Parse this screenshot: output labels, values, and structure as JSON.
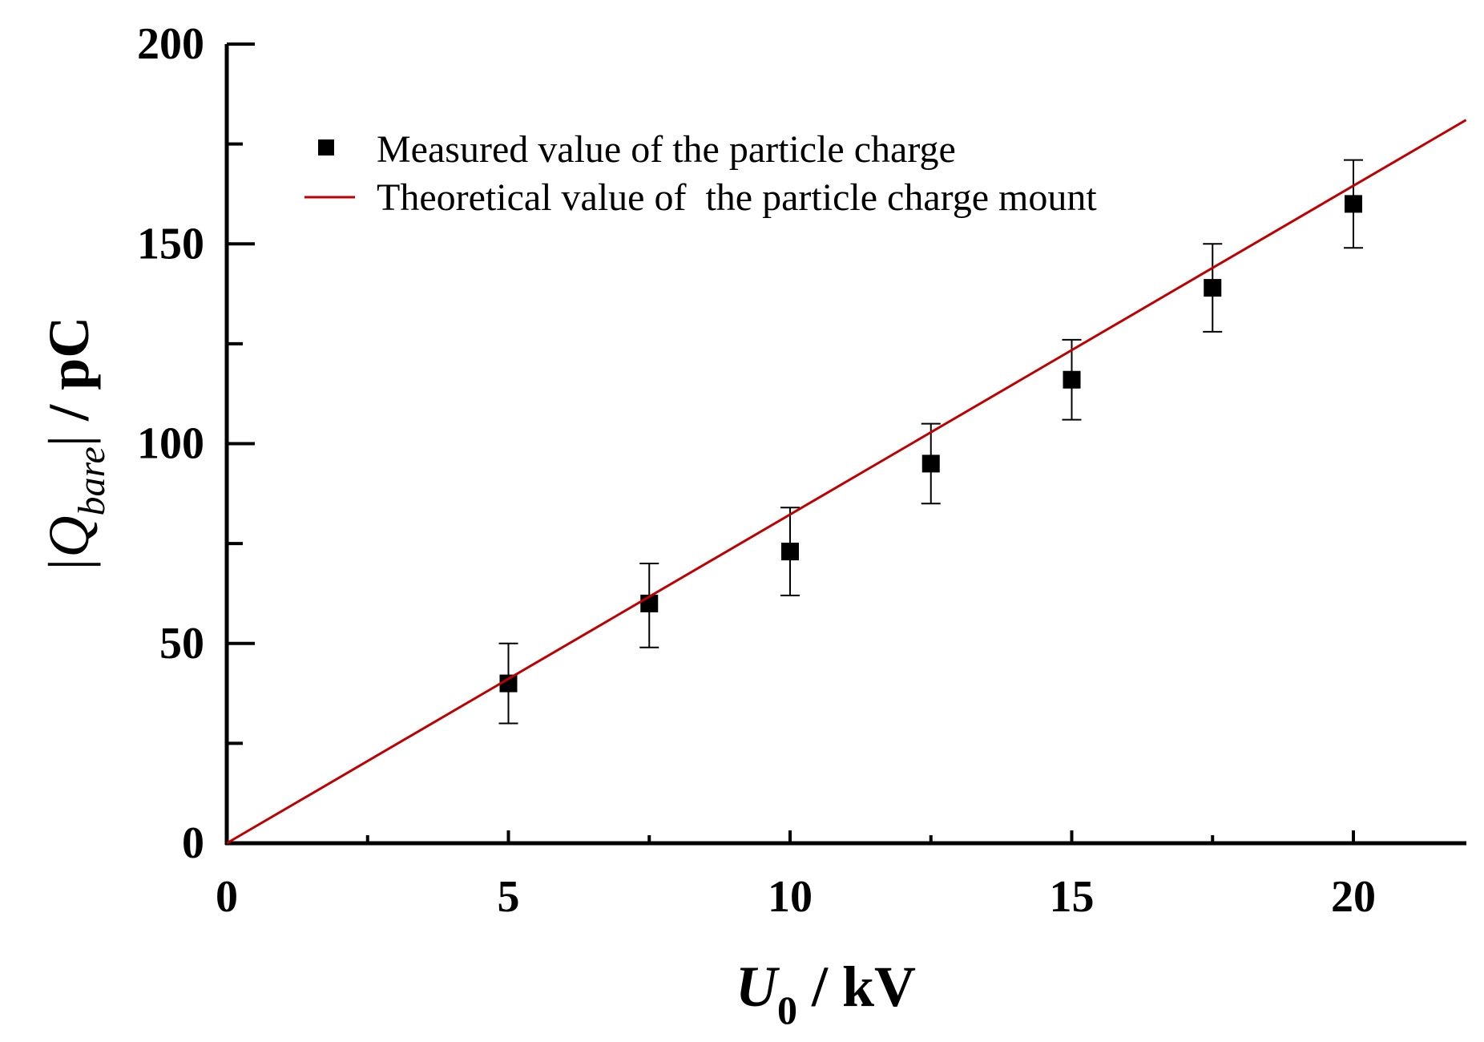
{
  "chart_data": {
    "type": "scatter",
    "title": "",
    "xlabel": {
      "symbol": "U",
      "subscript": "0",
      "unit": " / kV"
    },
    "ylabel": {
      "symbol": "|Q",
      "subscript": "bare",
      "close": "|",
      "unit": " / pC"
    },
    "xlim": [
      0,
      22
    ],
    "ylim": [
      0,
      200
    ],
    "x_major_ticks": [
      0,
      5,
      10,
      15,
      20
    ],
    "x_tick_labels": [
      "0",
      "5",
      "10",
      "15",
      "20"
    ],
    "x_minor_ticks": [
      2.5,
      7.5,
      12.5,
      17.5
    ],
    "y_major_ticks": [
      0,
      50,
      100,
      150,
      200
    ],
    "y_tick_labels": [
      "0",
      "50",
      "100",
      "150",
      "200"
    ],
    "y_minor_ticks": [
      25,
      75,
      125,
      175
    ],
    "grid": false,
    "legend_position": "top-left",
    "series": [
      {
        "name": "Measured value of the particle charge",
        "kind": "scatter",
        "marker": "square",
        "color": "#000000",
        "x": [
          5,
          7.5,
          10,
          12.5,
          15,
          17.5,
          20
        ],
        "y": [
          40,
          60,
          73,
          95,
          116,
          139,
          160
        ],
        "err_low": [
          30,
          49,
          62,
          85,
          106,
          128,
          149
        ],
        "err_high": [
          50,
          70,
          84,
          105,
          126,
          150,
          171
        ]
      },
      {
        "name": "Theoretical value of  the particle charge mount",
        "kind": "line",
        "color": "#c00000",
        "x": [
          0,
          22
        ],
        "y": [
          0,
          181
        ]
      }
    ]
  }
}
